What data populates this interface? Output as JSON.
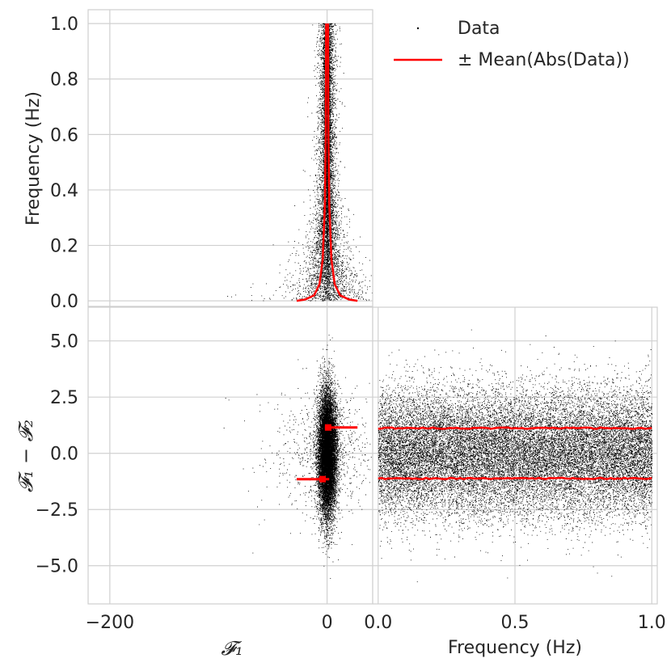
{
  "chart_data": [
    {
      "panel": "top-left",
      "type": "scatter",
      "title": "",
      "xlabel": "",
      "ylabel": "Frequency (Hz)",
      "xlim": [
        -220,
        42
      ],
      "ylim": [
        -0.02,
        1.05
      ],
      "xticks": [],
      "yticks": [
        0.0,
        0.2,
        0.4,
        0.6,
        0.8,
        1.0
      ],
      "ytick_labels": [
        "0.0",
        "0.2",
        "0.4",
        "0.6",
        "0.8",
        "1.0"
      ],
      "grid": true,
      "series": [
        {
          "name": "Data",
          "kind": "points",
          "color": "#000000",
          "x_spread_at_y0": 55,
          "x_spread_at_y1": 3,
          "y_range": [
            0,
            1
          ]
        },
        {
          "name": "± Mean(Abs(Data))",
          "kind": "lines",
          "color": "#ff0000",
          "x": [
            -28,
            -20,
            -12,
            -7,
            -4,
            -2,
            -1.2,
            -1.0,
            -0.9
          ],
          "y": [
            0.0,
            0.005,
            0.02,
            0.06,
            0.15,
            0.35,
            0.6,
            0.85,
            1.0
          ]
        }
      ]
    },
    {
      "panel": "bottom-left",
      "type": "scatter",
      "title": "",
      "xlabel": "𝓕₁",
      "ylabel": "𝓕₁ − 𝓕₂",
      "xlim": [
        -220,
        42
      ],
      "ylim": [
        -6.7,
        6.5
      ],
      "xticks": [
        -200,
        0
      ],
      "xtick_labels": [
        "−200",
        "0"
      ],
      "yticks": [
        5.0,
        2.5,
        0.0,
        -2.5,
        -5.0
      ],
      "ytick_labels": [
        "5.0",
        "2.5",
        "0.0",
        "−2.5",
        "−5.0"
      ],
      "grid": true,
      "series": [
        {
          "name": "Data",
          "kind": "points",
          "color": "#000000",
          "x_sigma": 4,
          "y_sigma": 1.4
        },
        {
          "name": "± Mean(Abs(Data))",
          "kind": "segments",
          "color": "#ff0000",
          "segments": [
            {
              "x": [
                -2,
                28
              ],
              "y": [
                1.15,
                1.15
              ]
            },
            {
              "x": [
                -28,
                2
              ],
              "y": [
                -1.15,
                -1.15
              ]
            }
          ]
        }
      ]
    },
    {
      "panel": "bottom-right",
      "type": "scatter",
      "title": "",
      "xlabel": "Frequency (Hz)",
      "ylabel": "",
      "xlim": [
        -0.02,
        1.02
      ],
      "ylim": [
        -6.7,
        6.5
      ],
      "xticks": [
        0.0,
        0.5,
        1.0
      ],
      "xtick_labels": [
        "0.0",
        "0.5",
        "1.0"
      ],
      "grid": true,
      "series": [
        {
          "name": "Data",
          "kind": "points",
          "color": "#000000",
          "y_sigma": 1.4,
          "x_range": [
            0,
            1
          ]
        },
        {
          "name": "± Mean(Abs(Data))",
          "kind": "lines",
          "color": "#ff0000",
          "lines": [
            {
              "x": [
                0,
                1
              ],
              "y": [
                1.12,
                1.12
              ]
            },
            {
              "x": [
                0,
                1
              ],
              "y": [
                -1.12,
                -1.12
              ]
            }
          ]
        }
      ]
    }
  ],
  "legend": {
    "placement": "top-right",
    "entries": [
      {
        "label": "Data",
        "marker": "point",
        "color": "#000000"
      },
      {
        "label": "± Mean(Abs(Data))",
        "marker": "line",
        "color": "#ff0000"
      }
    ]
  }
}
